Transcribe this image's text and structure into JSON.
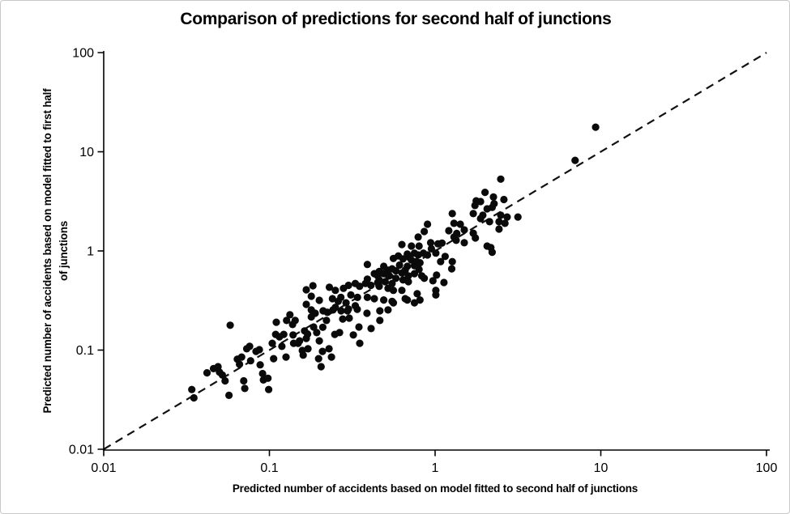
{
  "window": {
    "background": "#ffffff",
    "frame_border_color": "#c9c9c9"
  },
  "chart_data": {
    "type": "scatter",
    "title": "Comparison of predictions for second half of junctions",
    "xlabel": "Predicted number of accidents based on model fitted to second half of junctions",
    "ylabel_line1": "Predicted number of accidents based on model fitted to first half",
    "ylabel_line2": "of junctions",
    "x_scale": "log",
    "y_scale": "log",
    "xlim": [
      0.01,
      100
    ],
    "ylim": [
      0.01,
      100
    ],
    "tick_values": [
      0.01,
      0.1,
      1,
      10,
      100
    ],
    "x_tick_labels": [
      "0.01",
      "0.1",
      "1",
      "10",
      "100"
    ],
    "y_tick_labels": [
      "0.01",
      "0.1",
      "1",
      "10",
      "100"
    ],
    "grid": false,
    "legend": "none",
    "axis_color": "#000000",
    "point_color": "#0a0a0a",
    "point_radius_px": 4.6,
    "identity_line": {
      "style": "dashed",
      "color": "#111111",
      "from": [
        0.01,
        0.01
      ],
      "to": [
        100,
        100
      ]
    },
    "points": [
      [
        0.034,
        0.04
      ],
      [
        0.035,
        0.033
      ],
      [
        0.042,
        0.059
      ],
      [
        0.046,
        0.065
      ],
      [
        0.049,
        0.068
      ],
      [
        0.05,
        0.06
      ],
      [
        0.052,
        0.056
      ],
      [
        0.054,
        0.049
      ],
      [
        0.057,
        0.035
      ],
      [
        0.058,
        0.178
      ],
      [
        0.064,
        0.081
      ],
      [
        0.066,
        0.072
      ],
      [
        0.068,
        0.085
      ],
      [
        0.07,
        0.049
      ],
      [
        0.071,
        0.041
      ],
      [
        0.073,
        0.103
      ],
      [
        0.076,
        0.109
      ],
      [
        0.077,
        0.078
      ],
      [
        0.083,
        0.097
      ],
      [
        0.087,
        0.101
      ],
      [
        0.088,
        0.071
      ],
      [
        0.091,
        0.058
      ],
      [
        0.092,
        0.05
      ],
      [
        0.098,
        0.052
      ],
      [
        0.099,
        0.04
      ],
      [
        0.104,
        0.117
      ],
      [
        0.106,
        0.082
      ],
      [
        0.109,
        0.144
      ],
      [
        0.11,
        0.191
      ],
      [
        0.115,
        0.136
      ],
      [
        0.119,
        0.109
      ],
      [
        0.122,
        0.144
      ],
      [
        0.126,
        0.085
      ],
      [
        0.127,
        0.199
      ],
      [
        0.133,
        0.227
      ],
      [
        0.138,
        0.181
      ],
      [
        0.139,
        0.142
      ],
      [
        0.143,
        0.199
      ],
      [
        0.149,
        0.117
      ],
      [
        0.152,
        0.124
      ],
      [
        0.158,
        0.099
      ],
      [
        0.16,
        0.089
      ],
      [
        0.163,
        0.156
      ],
      [
        0.167,
        0.131
      ],
      [
        0.171,
        0.103
      ],
      [
        0.179,
        0.254
      ],
      [
        0.179,
        0.216
      ],
      [
        0.185,
        0.171
      ],
      [
        0.189,
        0.235
      ],
      [
        0.193,
        0.15
      ],
      [
        0.198,
        0.082
      ],
      [
        0.2,
        0.124
      ],
      [
        0.205,
        0.068
      ],
      [
        0.209,
        0.097
      ],
      [
        0.211,
        0.249
      ],
      [
        0.224,
        0.24
      ],
      [
        0.242,
        0.254
      ],
      [
        0.271,
        0.249
      ],
      [
        0.296,
        0.249
      ],
      [
        0.339,
        0.258
      ],
      [
        0.388,
        0.235
      ],
      [
        0.464,
        0.249
      ],
      [
        0.52,
        0.254
      ],
      [
        0.221,
        0.199
      ],
      [
        0.277,
        0.206
      ],
      [
        0.303,
        0.21
      ],
      [
        0.464,
        0.199
      ],
      [
        0.347,
        0.171
      ],
      [
        0.411,
        0.165
      ],
      [
        0.248,
        0.144
      ],
      [
        0.265,
        0.15
      ],
      [
        0.321,
        0.142
      ],
      [
        0.351,
        0.117
      ],
      [
        0.229,
        0.103
      ],
      [
        0.237,
        0.085
      ],
      [
        0.167,
        0.406
      ],
      [
        0.183,
        0.446
      ],
      [
        0.179,
        0.349
      ],
      [
        0.167,
        0.289
      ],
      [
        0.2,
        0.318
      ],
      [
        1.27,
        2.38
      ],
      [
        1.3,
        1.9
      ],
      [
        1.42,
        1.86
      ],
      [
        1.5,
        1.63
      ],
      [
        1.21,
        1.6
      ],
      [
        1.3,
        1.38
      ],
      [
        1.34,
        1.28
      ],
      [
        1.5,
        1.21
      ],
      [
        0.9,
        1.86
      ],
      [
        0.86,
        1.57
      ],
      [
        0.79,
        1.38
      ],
      [
        0.94,
        1.21
      ],
      [
        1.04,
        1.18
      ],
      [
        0.63,
        1.16
      ],
      [
        0.72,
        1.12
      ],
      [
        0.8,
        1.12
      ],
      [
        1.01,
        0.95
      ],
      [
        0.9,
        0.91
      ],
      [
        1.08,
        0.78
      ],
      [
        1.27,
        0.78
      ],
      [
        1.26,
        0.66
      ],
      [
        1.02,
        0.57
      ],
      [
        1.13,
        0.48
      ],
      [
        1.01,
        0.4
      ],
      [
        0.79,
        0.91
      ],
      [
        0.75,
        0.95
      ],
      [
        0.68,
        0.93
      ],
      [
        0.7,
        0.86
      ],
      [
        0.64,
        0.83
      ],
      [
        0.6,
        0.89
      ],
      [
        0.56,
        0.84
      ],
      [
        0.77,
        0.78
      ],
      [
        0.81,
        0.76
      ],
      [
        0.75,
        0.71
      ],
      [
        0.68,
        0.7
      ],
      [
        0.8,
        0.65
      ],
      [
        0.75,
        0.59
      ],
      [
        0.83,
        0.56
      ],
      [
        0.69,
        0.56
      ],
      [
        0.63,
        0.6
      ],
      [
        0.58,
        0.63
      ],
      [
        0.55,
        0.66
      ],
      [
        0.52,
        0.64
      ],
      [
        0.49,
        0.59
      ],
      [
        0.46,
        0.62
      ],
      [
        0.49,
        0.7
      ],
      [
        0.53,
        0.56
      ],
      [
        0.58,
        0.53
      ],
      [
        0.64,
        0.51
      ],
      [
        0.69,
        0.49
      ],
      [
        0.55,
        0.47
      ],
      [
        0.5,
        0.49
      ],
      [
        0.46,
        0.51
      ],
      [
        0.45,
        0.56
      ],
      [
        0.43,
        0.59
      ],
      [
        0.39,
        0.52
      ],
      [
        0.38,
        0.47
      ],
      [
        0.41,
        0.45
      ],
      [
        0.46,
        0.44
      ],
      [
        0.52,
        0.42
      ],
      [
        0.56,
        0.4
      ],
      [
        0.63,
        0.4
      ],
      [
        0.35,
        0.44
      ],
      [
        0.33,
        0.47
      ],
      [
        0.3,
        0.45
      ],
      [
        0.28,
        0.42
      ],
      [
        0.25,
        0.4
      ],
      [
        0.23,
        0.43
      ],
      [
        0.39,
        0.73
      ],
      [
        0.31,
        0.36
      ],
      [
        0.34,
        0.34
      ],
      [
        0.39,
        0.34
      ],
      [
        0.27,
        0.34
      ],
      [
        0.24,
        0.33
      ],
      [
        0.43,
        0.33
      ],
      [
        0.49,
        0.32
      ],
      [
        0.55,
        0.31
      ],
      [
        0.75,
        0.3
      ],
      [
        0.68,
        0.32
      ],
      [
        0.81,
        0.32
      ],
      [
        0.86,
        0.53
      ],
      [
        0.97,
        0.5
      ],
      [
        1.01,
        0.36
      ],
      [
        0.78,
        0.37
      ],
      [
        0.66,
        0.33
      ],
      [
        0.56,
        0.3
      ],
      [
        1.7,
        2.38
      ],
      [
        1.88,
        2.12
      ],
      [
        1.94,
        2.29
      ],
      [
        2.13,
        1.97
      ],
      [
        2.43,
        1.97
      ],
      [
        2.49,
        2.29
      ],
      [
        2.64,
        1.9
      ],
      [
        2.72,
        2.2
      ],
      [
        3.16,
        2.2
      ],
      [
        2.43,
        1.66
      ],
      [
        1.7,
        1.51
      ],
      [
        1.75,
        1.35
      ],
      [
        2.06,
        1.12
      ],
      [
        2.17,
        1.08
      ],
      [
        2.21,
        0.97
      ],
      [
        9.3,
        17.7
      ],
      [
        7.0,
        8.2
      ],
      [
        2.49,
        5.3
      ],
      [
        2.0,
        3.9
      ],
      [
        2.25,
        3.5
      ],
      [
        2.6,
        3.3
      ],
      [
        1.88,
        3.15
      ],
      [
        2.27,
        3.0
      ],
      [
        1.77,
        3.2
      ],
      [
        1.74,
        2.87
      ],
      [
        2.06,
        2.66
      ],
      [
        2.21,
        2.75
      ],
      [
        0.45,
        0.48
      ],
      [
        0.52,
        0.57
      ],
      [
        0.61,
        0.72
      ],
      [
        0.66,
        0.64
      ],
      [
        0.72,
        0.81
      ],
      [
        0.85,
        0.95
      ],
      [
        0.95,
        1.05
      ],
      [
        1.1,
        1.2
      ],
      [
        1.15,
        0.88
      ],
      [
        1.35,
        1.5
      ],
      [
        0.3,
        0.26
      ],
      [
        0.26,
        0.31
      ],
      [
        0.21,
        0.17
      ],
      [
        0.17,
        0.145
      ],
      [
        0.14,
        0.117
      ],
      [
        0.25,
        0.27
      ],
      [
        0.29,
        0.3
      ],
      [
        0.33,
        0.28
      ]
    ]
  }
}
